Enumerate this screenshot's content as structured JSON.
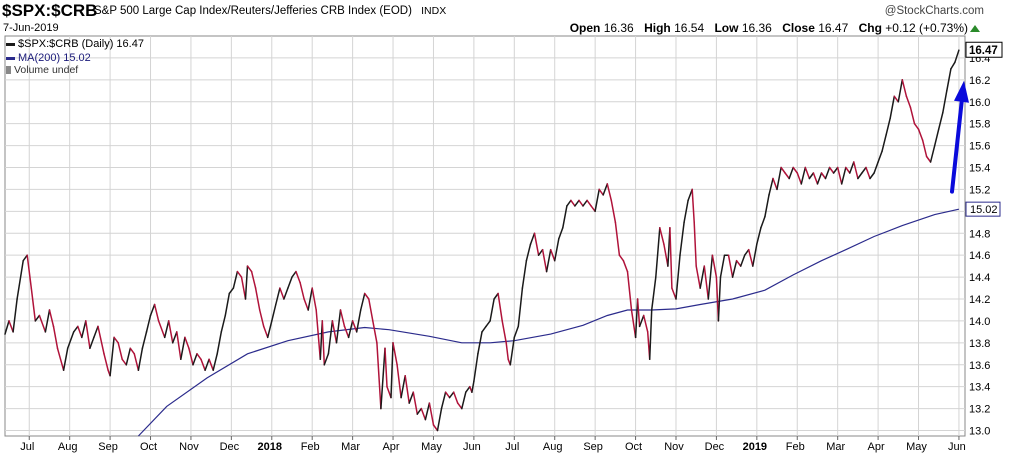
{
  "header": {
    "ticker": "$SPX:$CRB",
    "description": "S&P 500 Large Cap Index/Reuters/Jefferies CRB Index (EOD)",
    "exchange": "INDX",
    "date": "7-Jun-2019",
    "brand": "@StockCharts.com",
    "open_label": "Open",
    "open": "16.36",
    "high_label": "High",
    "high": "16.54",
    "low_label": "Low",
    "low": "16.36",
    "close_label": "Close",
    "close": "16.47",
    "chg_label": "Chg",
    "chg": "+0.12 (+0.73%)"
  },
  "legend": {
    "series1": "$SPX:$CRB (Daily) 16.47",
    "series2": "MA(200) 15.02",
    "series3": "Volume undef"
  },
  "colors": {
    "up": "#1a1a1a",
    "down": "#b0133a",
    "ma": "#2b2b8c",
    "arrow": "#0a0adb",
    "grid": "#d4d4d4"
  },
  "chart_data": {
    "type": "line",
    "title": "$SPX:$CRB (Daily)",
    "ylim": [
      12.95,
      16.6
    ],
    "y_ticks": [
      13.0,
      13.2,
      13.4,
      13.6,
      13.8,
      14.0,
      14.2,
      14.4,
      14.6,
      14.8,
      15.0,
      15.2,
      15.4,
      15.6,
      15.8,
      16.0,
      16.2,
      16.4
    ],
    "x_ticks": [
      {
        "t": 0.6,
        "label": "Jul"
      },
      {
        "t": 1.6,
        "label": "Aug"
      },
      {
        "t": 2.6,
        "label": "Sep"
      },
      {
        "t": 3.6,
        "label": "Oct"
      },
      {
        "t": 4.6,
        "label": "Nov"
      },
      {
        "t": 5.6,
        "label": "Dec"
      },
      {
        "t": 6.6,
        "label": "2018",
        "bold": true
      },
      {
        "t": 7.6,
        "label": "Feb"
      },
      {
        "t": 8.6,
        "label": "Mar"
      },
      {
        "t": 9.6,
        "label": "Apr"
      },
      {
        "t": 10.6,
        "label": "May"
      },
      {
        "t": 11.6,
        "label": "Jun"
      },
      {
        "t": 12.6,
        "label": "Jul"
      },
      {
        "t": 13.6,
        "label": "Aug"
      },
      {
        "t": 14.6,
        "label": "Sep"
      },
      {
        "t": 15.6,
        "label": "Oct"
      },
      {
        "t": 16.6,
        "label": "Nov"
      },
      {
        "t": 17.6,
        "label": "Dec"
      },
      {
        "t": 18.6,
        "label": "2019",
        "bold": true
      },
      {
        "t": 19.6,
        "label": "Feb"
      },
      {
        "t": 20.6,
        "label": "Mar"
      },
      {
        "t": 21.6,
        "label": "Apr"
      },
      {
        "t": 22.6,
        "label": "May"
      },
      {
        "t": 23.6,
        "label": "Jun"
      }
    ],
    "price": [
      [
        0.0,
        13.88
      ],
      [
        0.1,
        14.0
      ],
      [
        0.2,
        13.9
      ],
      [
        0.3,
        14.2
      ],
      [
        0.45,
        14.55
      ],
      [
        0.55,
        14.6
      ],
      [
        0.65,
        14.3
      ],
      [
        0.75,
        14.0
      ],
      [
        0.85,
        14.05
      ],
      [
        1.0,
        13.9
      ],
      [
        1.1,
        14.1
      ],
      [
        1.2,
        13.95
      ],
      [
        1.3,
        13.75
      ],
      [
        1.45,
        13.55
      ],
      [
        1.55,
        13.75
      ],
      [
        1.7,
        13.9
      ],
      [
        1.8,
        13.95
      ],
      [
        1.9,
        13.85
      ],
      [
        2.0,
        14.0
      ],
      [
        2.1,
        13.75
      ],
      [
        2.2,
        13.85
      ],
      [
        2.3,
        13.95
      ],
      [
        2.45,
        13.7
      ],
      [
        2.55,
        13.55
      ],
      [
        2.6,
        13.5
      ],
      [
        2.7,
        13.85
      ],
      [
        2.8,
        13.8
      ],
      [
        2.9,
        13.65
      ],
      [
        3.0,
        13.6
      ],
      [
        3.1,
        13.75
      ],
      [
        3.2,
        13.7
      ],
      [
        3.3,
        13.55
      ],
      [
        3.4,
        13.75
      ],
      [
        3.5,
        13.9
      ],
      [
        3.6,
        14.05
      ],
      [
        3.7,
        14.15
      ],
      [
        3.8,
        14.0
      ],
      [
        3.95,
        13.85
      ],
      [
        4.05,
        14.0
      ],
      [
        4.15,
        13.8
      ],
      [
        4.25,
        13.9
      ],
      [
        4.35,
        13.65
      ],
      [
        4.45,
        13.85
      ],
      [
        4.55,
        13.75
      ],
      [
        4.65,
        13.6
      ],
      [
        4.75,
        13.7
      ],
      [
        4.85,
        13.65
      ],
      [
        4.95,
        13.55
      ],
      [
        5.05,
        13.65
      ],
      [
        5.15,
        13.55
      ],
      [
        5.25,
        13.7
      ],
      [
        5.35,
        13.9
      ],
      [
        5.45,
        14.05
      ],
      [
        5.55,
        14.25
      ],
      [
        5.65,
        14.3
      ],
      [
        5.75,
        14.45
      ],
      [
        5.85,
        14.4
      ],
      [
        5.95,
        14.2
      ],
      [
        6.0,
        14.5
      ],
      [
        6.1,
        14.45
      ],
      [
        6.2,
        14.3
      ],
      [
        6.3,
        14.1
      ],
      [
        6.4,
        13.95
      ],
      [
        6.5,
        13.85
      ],
      [
        6.6,
        14.0
      ],
      [
        6.7,
        14.15
      ],
      [
        6.8,
        14.3
      ],
      [
        6.9,
        14.2
      ],
      [
        7.0,
        14.3
      ],
      [
        7.1,
        14.4
      ],
      [
        7.2,
        14.45
      ],
      [
        7.3,
        14.35
      ],
      [
        7.4,
        14.2
      ],
      [
        7.5,
        14.1
      ],
      [
        7.6,
        14.3
      ],
      [
        7.7,
        14.1
      ],
      [
        7.8,
        13.65
      ],
      [
        7.85,
        14.0
      ],
      [
        7.9,
        13.6
      ],
      [
        8.0,
        13.7
      ],
      [
        8.1,
        14.0
      ],
      [
        8.2,
        13.8
      ],
      [
        8.3,
        14.1
      ],
      [
        8.4,
        13.95
      ],
      [
        8.5,
        13.85
      ],
      [
        8.6,
        14.0
      ],
      [
        8.7,
        13.9
      ],
      [
        8.8,
        14.1
      ],
      [
        8.9,
        14.25
      ],
      [
        9.0,
        14.2
      ],
      [
        9.1,
        14.0
      ],
      [
        9.2,
        13.8
      ],
      [
        9.3,
        13.2
      ],
      [
        9.4,
        13.75
      ],
      [
        9.45,
        13.4
      ],
      [
        9.55,
        13.3
      ],
      [
        9.6,
        13.8
      ],
      [
        9.7,
        13.6
      ],
      [
        9.8,
        13.3
      ],
      [
        9.9,
        13.5
      ],
      [
        10.0,
        13.25
      ],
      [
        10.1,
        13.35
      ],
      [
        10.2,
        13.15
      ],
      [
        10.3,
        13.2
      ],
      [
        10.4,
        13.1
      ],
      [
        10.5,
        13.25
      ],
      [
        10.6,
        13.05
      ],
      [
        10.7,
        13.0
      ],
      [
        10.8,
        13.2
      ],
      [
        10.9,
        13.35
      ],
      [
        11.0,
        13.3
      ],
      [
        11.1,
        13.35
      ],
      [
        11.2,
        13.25
      ],
      [
        11.3,
        13.2
      ],
      [
        11.4,
        13.35
      ],
      [
        11.5,
        13.4
      ],
      [
        11.55,
        13.35
      ],
      [
        11.6,
        13.45
      ],
      [
        11.7,
        13.7
      ],
      [
        11.8,
        13.9
      ],
      [
        11.9,
        13.95
      ],
      [
        12.0,
        14.0
      ],
      [
        12.1,
        14.2
      ],
      [
        12.2,
        14.25
      ],
      [
        12.3,
        14.0
      ],
      [
        12.4,
        13.8
      ],
      [
        12.45,
        13.65
      ],
      [
        12.5,
        13.6
      ],
      [
        12.6,
        13.85
      ],
      [
        12.7,
        13.95
      ],
      [
        12.8,
        14.3
      ],
      [
        12.9,
        14.55
      ],
      [
        13.0,
        14.7
      ],
      [
        13.1,
        14.8
      ],
      [
        13.2,
        14.6
      ],
      [
        13.3,
        14.65
      ],
      [
        13.4,
        14.45
      ],
      [
        13.5,
        14.65
      ],
      [
        13.6,
        14.55
      ],
      [
        13.7,
        14.75
      ],
      [
        13.8,
        14.85
      ],
      [
        13.9,
        15.05
      ],
      [
        14.0,
        15.1
      ],
      [
        14.1,
        15.05
      ],
      [
        14.2,
        15.1
      ],
      [
        14.3,
        15.05
      ],
      [
        14.4,
        15.1
      ],
      [
        14.5,
        15.05
      ],
      [
        14.6,
        15.0
      ],
      [
        14.7,
        15.2
      ],
      [
        14.8,
        15.15
      ],
      [
        14.9,
        15.25
      ],
      [
        15.0,
        15.1
      ],
      [
        15.1,
        14.9
      ],
      [
        15.2,
        14.6
      ],
      [
        15.3,
        14.55
      ],
      [
        15.4,
        14.45
      ],
      [
        15.5,
        14.1
      ],
      [
        15.6,
        13.85
      ],
      [
        15.65,
        14.2
      ],
      [
        15.7,
        13.95
      ],
      [
        15.8,
        14.05
      ],
      [
        15.9,
        13.9
      ],
      [
        15.95,
        13.65
      ],
      [
        16.0,
        14.1
      ],
      [
        16.1,
        14.4
      ],
      [
        16.2,
        14.85
      ],
      [
        16.3,
        14.7
      ],
      [
        16.4,
        14.5
      ],
      [
        16.45,
        14.85
      ],
      [
        16.5,
        14.3
      ],
      [
        16.6,
        14.2
      ],
      [
        16.7,
        14.6
      ],
      [
        16.8,
        14.9
      ],
      [
        16.9,
        15.1
      ],
      [
        17.0,
        15.2
      ],
      [
        17.05,
        14.9
      ],
      [
        17.1,
        14.5
      ],
      [
        17.2,
        14.3
      ],
      [
        17.3,
        14.5
      ],
      [
        17.4,
        14.2
      ],
      [
        17.5,
        14.6
      ],
      [
        17.6,
        14.4
      ],
      [
        17.65,
        14.0
      ],
      [
        17.7,
        14.4
      ],
      [
        17.8,
        14.6
      ],
      [
        17.9,
        14.6
      ],
      [
        18.0,
        14.4
      ],
      [
        18.1,
        14.55
      ],
      [
        18.2,
        14.5
      ],
      [
        18.3,
        14.6
      ],
      [
        18.4,
        14.65
      ],
      [
        18.5,
        14.5
      ],
      [
        18.6,
        14.7
      ],
      [
        18.7,
        14.85
      ],
      [
        18.8,
        14.95
      ],
      [
        18.9,
        15.15
      ],
      [
        19.0,
        15.3
      ],
      [
        19.1,
        15.2
      ],
      [
        19.2,
        15.4
      ],
      [
        19.3,
        15.35
      ],
      [
        19.4,
        15.3
      ],
      [
        19.5,
        15.4
      ],
      [
        19.6,
        15.35
      ],
      [
        19.7,
        15.25
      ],
      [
        19.8,
        15.4
      ],
      [
        19.9,
        15.3
      ],
      [
        20.0,
        15.35
      ],
      [
        20.1,
        15.25
      ],
      [
        20.2,
        15.35
      ],
      [
        20.3,
        15.3
      ],
      [
        20.4,
        15.4
      ],
      [
        20.5,
        15.35
      ],
      [
        20.6,
        15.4
      ],
      [
        20.7,
        15.25
      ],
      [
        20.8,
        15.4
      ],
      [
        20.9,
        15.35
      ],
      [
        21.0,
        15.45
      ],
      [
        21.1,
        15.3
      ],
      [
        21.2,
        15.35
      ],
      [
        21.3,
        15.4
      ],
      [
        21.4,
        15.3
      ],
      [
        21.5,
        15.35
      ],
      [
        21.6,
        15.45
      ],
      [
        21.7,
        15.55
      ],
      [
        21.8,
        15.7
      ],
      [
        21.9,
        15.85
      ],
      [
        22.0,
        16.05
      ],
      [
        22.1,
        16.0
      ],
      [
        22.2,
        16.2
      ],
      [
        22.3,
        16.05
      ],
      [
        22.4,
        15.95
      ],
      [
        22.5,
        15.8
      ],
      [
        22.6,
        15.75
      ],
      [
        22.7,
        15.65
      ],
      [
        22.8,
        15.5
      ],
      [
        22.9,
        15.45
      ],
      [
        23.0,
        15.6
      ],
      [
        23.1,
        15.75
      ],
      [
        23.2,
        15.9
      ],
      [
        23.3,
        16.1
      ],
      [
        23.4,
        16.3
      ],
      [
        23.5,
        16.36
      ],
      [
        23.6,
        16.47
      ]
    ],
    "ma200": [
      [
        3.3,
        12.95
      ],
      [
        4.0,
        13.22
      ],
      [
        5.0,
        13.48
      ],
      [
        6.0,
        13.7
      ],
      [
        7.0,
        13.82
      ],
      [
        8.0,
        13.9
      ],
      [
        8.9,
        13.94
      ],
      [
        9.5,
        13.92
      ],
      [
        10.5,
        13.86
      ],
      [
        11.3,
        13.8
      ],
      [
        12.0,
        13.8
      ],
      [
        12.6,
        13.82
      ],
      [
        13.5,
        13.88
      ],
      [
        14.3,
        13.96
      ],
      [
        14.9,
        14.05
      ],
      [
        15.4,
        14.1
      ],
      [
        16.0,
        14.1
      ],
      [
        16.6,
        14.11
      ],
      [
        17.2,
        14.15
      ],
      [
        18.0,
        14.2
      ],
      [
        18.8,
        14.28
      ],
      [
        19.5,
        14.42
      ],
      [
        20.2,
        14.55
      ],
      [
        20.8,
        14.65
      ],
      [
        21.5,
        14.77
      ],
      [
        22.2,
        14.87
      ],
      [
        23.0,
        14.97
      ],
      [
        23.6,
        15.02
      ]
    ],
    "current_value": "16.47",
    "ma_value": "15.02"
  }
}
